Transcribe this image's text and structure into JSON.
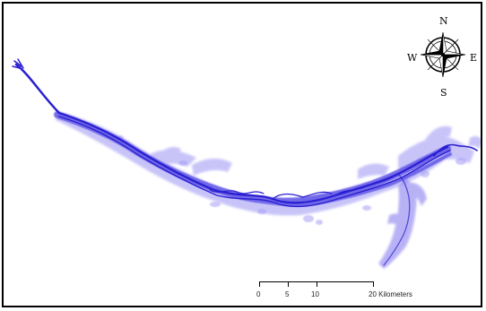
{
  "map": {
    "river_color": "#2a1fd0",
    "floodplain_color": "#7a6ff0",
    "background_color": "#ffffff",
    "frame_color": "#000000"
  },
  "compass": {
    "icon": "compass-rose-icon",
    "north": "N",
    "south": "S",
    "east": "E",
    "west": "W"
  },
  "scale_bar": {
    "ticks": [
      "0",
      "5",
      "10",
      "20 Kilometers"
    ]
  }
}
